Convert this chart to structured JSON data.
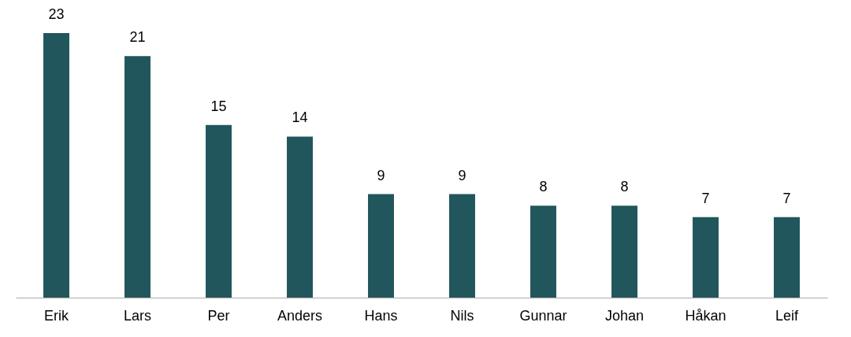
{
  "chart_data": {
    "type": "bar",
    "categories": [
      "Erik",
      "Lars",
      "Per",
      "Anders",
      "Hans",
      "Nils",
      "Gunnar",
      "Johan",
      "Håkan",
      "Leif"
    ],
    "values": [
      23,
      21,
      15,
      14,
      9,
      9,
      8,
      8,
      7,
      7
    ],
    "color": "#20565c",
    "data_labels": true,
    "tick_labels": "x"
  }
}
